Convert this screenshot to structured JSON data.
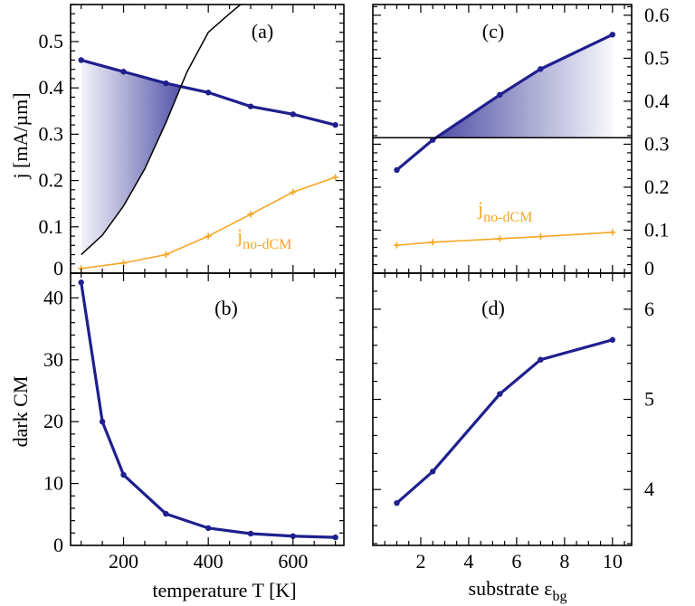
{
  "colors": {
    "dark": "#1f1f8f",
    "orange": "#f5a623",
    "black": "#000000"
  },
  "chart_data": [
    {
      "panel": "a",
      "type": "line",
      "label": "(a)",
      "ylabel": "j [mA/µm]",
      "xlim": [
        75,
        720
      ],
      "ylim": [
        0,
        0.58
      ],
      "yticks": [
        0,
        0.1,
        0.2,
        0.3,
        0.4,
        0.5
      ],
      "ytick_labels": [
        "0",
        "0.1",
        "0.2",
        "0.3",
        "0.4",
        "0.5"
      ],
      "series": [
        {
          "role": "dark",
          "x": [
            100,
            200,
            300,
            400,
            500,
            600,
            700
          ],
          "y": [
            0.46,
            0.435,
            0.41,
            0.39,
            0.36,
            0.343,
            0.32
          ]
        },
        {
          "role": "orange",
          "name": "j",
          "name_sub": "no-dCM",
          "x": [
            100,
            200,
            300,
            400,
            500,
            600,
            700
          ],
          "y": [
            0.01,
            0.022,
            0.04,
            0.08,
            0.127,
            0.175,
            0.207
          ]
        },
        {
          "role": "black",
          "x": [
            100,
            150,
            200,
            250,
            300,
            350,
            400,
            450,
            476
          ],
          "y": [
            0.04,
            0.082,
            0.145,
            0.225,
            0.325,
            0.435,
            0.52,
            0.56,
            0.58
          ]
        }
      ]
    },
    {
      "panel": "b",
      "type": "line",
      "label": "(b)",
      "ylabel": "dark CM",
      "xlabel": "temperature T [K]",
      "xlim": [
        75,
        720
      ],
      "ylim": [
        0,
        44
      ],
      "xticks": [
        200,
        400,
        600
      ],
      "xtick_labels": [
        "200",
        "400",
        "600"
      ],
      "yticks": [
        0,
        10,
        20,
        30,
        40
      ],
      "ytick_labels": [
        "0",
        "10",
        "20",
        "30",
        "40"
      ],
      "series": [
        {
          "role": "dark",
          "x": [
            100,
            150,
            200,
            300,
            400,
            500,
            600,
            700
          ],
          "y": [
            42.5,
            20,
            11.4,
            5.1,
            2.8,
            1.9,
            1.5,
            1.3
          ]
        }
      ]
    },
    {
      "panel": "c",
      "type": "line",
      "label": "(c)",
      "xlim": [
        0,
        10.8
      ],
      "ylim": [
        0,
        0.625
      ],
      "yticks": [
        0,
        0.1,
        0.2,
        0.3,
        0.4,
        0.5,
        0.6
      ],
      "ytick_labels": [
        "0",
        "0.1",
        "0.2",
        "0.3",
        "0.4",
        "0.5",
        "0.6"
      ],
      "series": [
        {
          "role": "dark",
          "x": [
            1,
            2.5,
            5.3,
            7,
            10
          ],
          "y": [
            0.24,
            0.31,
            0.415,
            0.475,
            0.555
          ]
        },
        {
          "role": "orange",
          "name": "j",
          "name_sub": "no-dCM",
          "x": [
            1,
            2.5,
            5.3,
            7,
            10
          ],
          "y": [
            0.065,
            0.072,
            0.08,
            0.085,
            0.095
          ]
        },
        {
          "role": "black",
          "x": [
            0,
            10.8
          ],
          "y": [
            0.315,
            0.315
          ]
        }
      ]
    },
    {
      "panel": "d",
      "type": "line",
      "label": "(d)",
      "xlabel": "substrate ε",
      "xlabel_sub": "bg",
      "xlim": [
        0,
        10.8
      ],
      "ylim": [
        3.38,
        6.4
      ],
      "xticks": [
        2,
        4,
        6,
        8,
        10
      ],
      "xtick_labels": [
        "2",
        "4",
        "6",
        "8",
        "10"
      ],
      "yticks": [
        4,
        5,
        6
      ],
      "ytick_labels": [
        "4",
        "5",
        "6"
      ],
      "series": [
        {
          "role": "dark",
          "x": [
            1,
            2.5,
            5.3,
            7,
            10
          ],
          "y": [
            3.85,
            4.2,
            5.06,
            5.44,
            5.66
          ]
        }
      ]
    }
  ]
}
